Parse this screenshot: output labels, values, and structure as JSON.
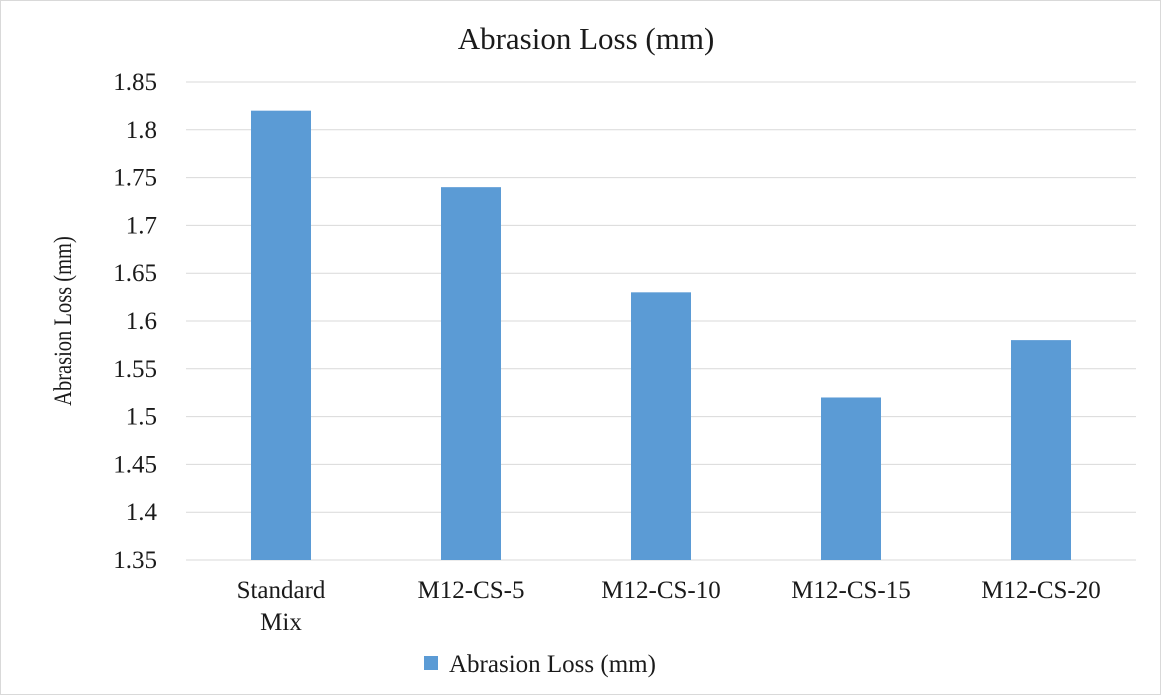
{
  "chart_data": {
    "type": "bar",
    "title": "Abrasion Loss (mm)",
    "xlabel": "",
    "ylabel": "Abrasion Loss (mm)",
    "categories": [
      [
        "Standard",
        "Mix"
      ],
      [
        "M12-CS-5"
      ],
      [
        "M12-CS-10"
      ],
      [
        "M12-CS-15"
      ],
      [
        "M12-CS-20"
      ]
    ],
    "series": [
      {
        "name": "Abrasion Loss (mm)",
        "values": [
          1.82,
          1.74,
          1.63,
          1.52,
          1.58
        ],
        "color": "#5b9bd5"
      }
    ],
    "ylim": [
      1.35,
      1.85
    ],
    "yticks": [
      "1.35",
      "1.4",
      "1.45",
      "1.5",
      "1.55",
      "1.6",
      "1.65",
      "1.7",
      "1.75",
      "1.8",
      "1.85"
    ],
    "grid": true,
    "gridColor": "#d9d9d9",
    "legend": "bottom"
  }
}
